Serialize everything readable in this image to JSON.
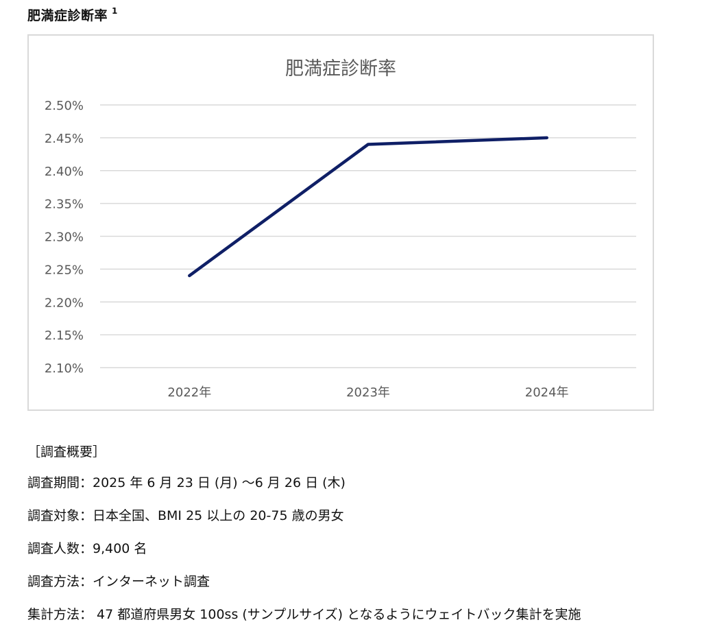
{
  "heading": {
    "title": "肥満症診断率",
    "footnote_marker": "1"
  },
  "chart_data": {
    "type": "line",
    "title": "肥満症診断率",
    "categories": [
      "2022年",
      "2023年",
      "2024年"
    ],
    "series": [
      {
        "values": [
          2.24,
          2.44,
          2.45
        ],
        "color": "#0f1f66"
      }
    ],
    "y_ticks": [
      "2.50%",
      "2.45%",
      "2.40%",
      "2.35%",
      "2.30%",
      "2.25%",
      "2.20%",
      "2.15%",
      "2.10%"
    ],
    "ylim": [
      2.1,
      2.5
    ],
    "grid": true,
    "xlabel": "",
    "ylabel": ""
  },
  "survey": {
    "title": "［調査概要］",
    "lines": [
      "調査期間：2025 年 6 月 23 日 (月) ～6 月 26 日 (木)",
      "調査対象：日本全国、BMI 25 以上の 20-75 歳の男女",
      "調査人数：9,400 名",
      "調査方法：インターネット調査",
      "集計方法： 47 都道府県男女 100ss (サンプルサイズ) となるようにウェイトバック集計を実施"
    ]
  },
  "colors": {
    "line": "#0f1f66",
    "grid": "#d9d9d9",
    "axis_text": "#595959",
    "frame": "#d9d9d9"
  }
}
